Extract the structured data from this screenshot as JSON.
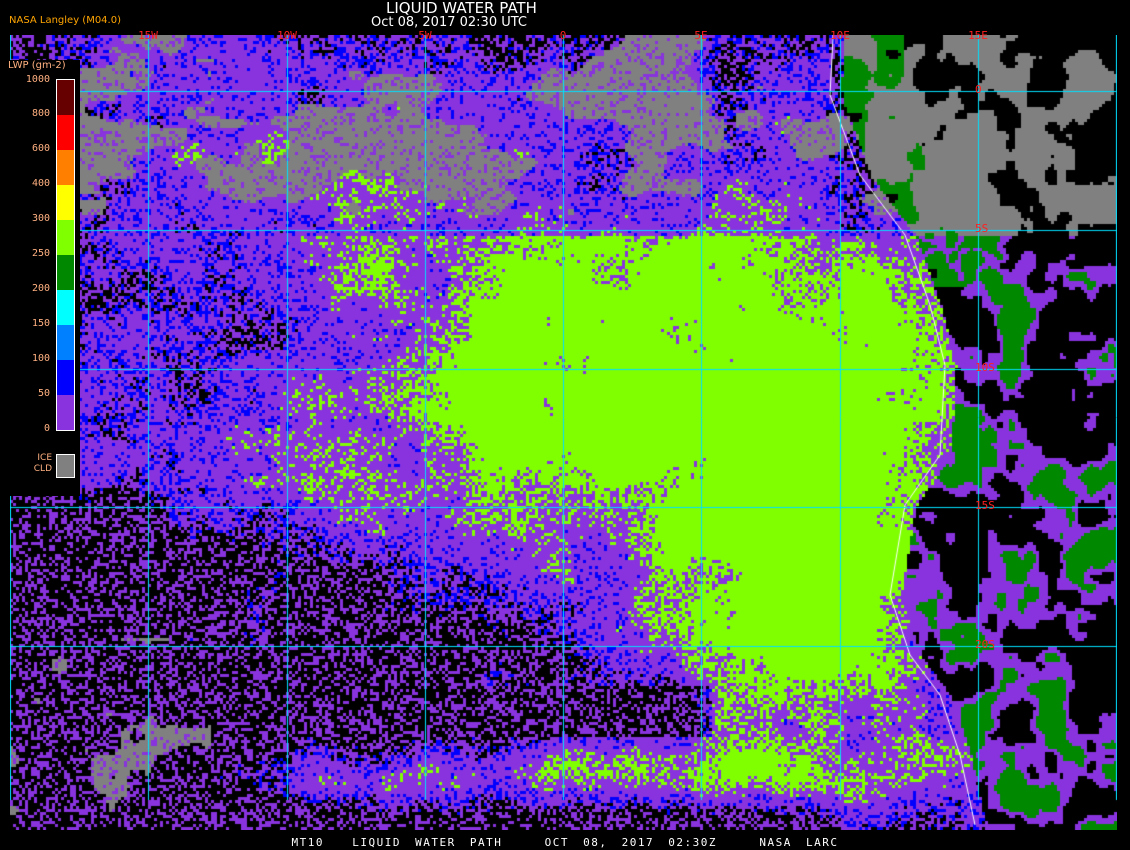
{
  "header": {
    "title": "LIQUID WATER PATH",
    "datetime": "Oct 08, 2017 02:30 UTC",
    "credit": "NASA Langley (M04.0)"
  },
  "longitude_labels": [
    "15W",
    "10W",
    "5W",
    "0",
    "5E",
    "10E",
    "15E"
  ],
  "latitude_labels": [
    "0",
    "5S",
    "10S",
    "15S",
    "20S"
  ],
  "legend": {
    "title": "LWP (gm-2)",
    "ticks": [
      "1000",
      "800",
      "600",
      "400",
      "300",
      "250",
      "200",
      "150",
      "100",
      "50",
      "0"
    ],
    "colors": [
      "#660000",
      "#ff0000",
      "#ff8000",
      "#ffff00",
      "#80ff00",
      "#008800",
      "#00ffff",
      "#0080ff",
      "#0000ff",
      "#8833dd"
    ],
    "ice_label": "ICE CLD",
    "ice_color": "#808080"
  },
  "colors": {
    "grid": "#00e0ff",
    "coastline": "#ffffff",
    "clear": "#000000"
  },
  "footer": "MT10  LIQUID WATER PATH   OCT 08, 2017 02:30Z   NASA LARC"
}
